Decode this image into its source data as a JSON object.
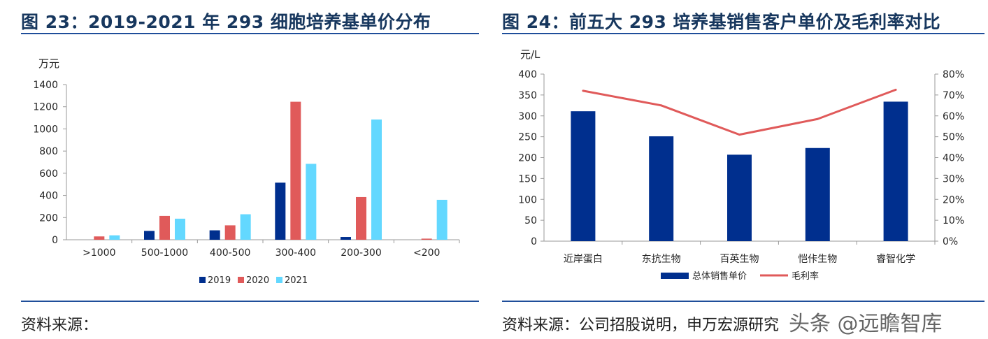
{
  "left": {
    "title": "图 23：2019-2021 年 293 细胞培养基单价分布",
    "source": "资料来源：",
    "chart_data": {
      "type": "bar",
      "ylabel": "万元",
      "ylim": [
        0,
        1400
      ],
      "yticks": [
        0,
        200,
        400,
        600,
        800,
        1000,
        1200,
        1400
      ],
      "categories": [
        ">1000",
        "500-1000",
        "400-500",
        "300-400",
        "200-300",
        "<200"
      ],
      "series": [
        {
          "name": "2019",
          "color": "#002f8e",
          "values": [
            0,
            80,
            85,
            515,
            25,
            0
          ]
        },
        {
          "name": "2020",
          "color": "#e05a5a",
          "values": [
            30,
            215,
            130,
            1245,
            385,
            10
          ]
        },
        {
          "name": "2021",
          "color": "#63d8ff",
          "values": [
            40,
            190,
            230,
            685,
            1085,
            360
          ]
        }
      ],
      "legend_position": "bottom",
      "grid": false
    }
  },
  "right": {
    "title": "图 24：前五大 293 培养基销售客户单价及毛利率对比",
    "source": "资料来源：公司招股说明，申万宏源研究",
    "chart_data": {
      "type": "bar+line",
      "ylabel_left": "元/L",
      "ylim_left": [
        0,
        400
      ],
      "yticks_left": [
        0,
        50,
        100,
        150,
        200,
        250,
        300,
        350,
        400
      ],
      "ylim_right": [
        0,
        80
      ],
      "yticks_right": [
        "0%",
        "10%",
        "20%",
        "30%",
        "40%",
        "50%",
        "60%",
        "70%",
        "80%"
      ],
      "categories": [
        "近岸蛋白",
        "东抗生物",
        "百英生物",
        "恺佧生物",
        "睿智化学"
      ],
      "series": [
        {
          "name": "总体销售单价",
          "type": "bar",
          "axis": "left",
          "color": "#002f8e",
          "values": [
            311,
            251,
            207,
            223,
            334
          ]
        },
        {
          "name": "毛利率",
          "type": "line",
          "axis": "right",
          "color": "#e05a5a",
          "values": [
            72,
            65,
            51,
            58.5,
            72.5
          ]
        }
      ],
      "legend_position": "bottom",
      "grid": false
    }
  },
  "watermark": "头条 @远瞻智库"
}
